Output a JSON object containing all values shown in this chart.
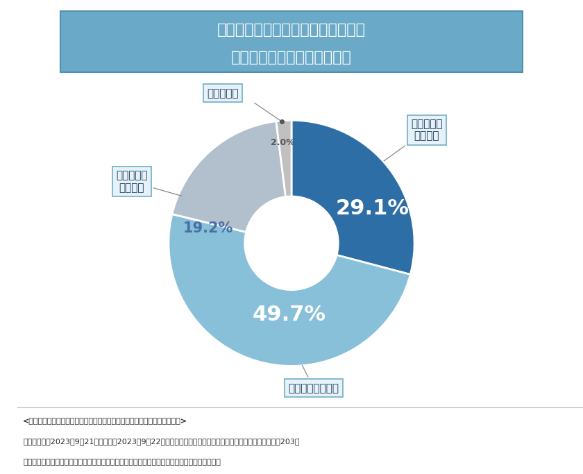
{
  "title_line1": "サスティナビリティ業務を行う上で",
  "title_line2": "人手不足を感じていますか？",
  "title_bg_color": "#6aaac8",
  "title_text_color": "#ffffff",
  "slices": [
    {
      "label": "とても不足\nしている",
      "value": 29.1,
      "color": "#2e6ea6",
      "pct_color": "#ffffff",
      "pct_size": 24
    },
    {
      "label": "やや不足している",
      "value": 49.7,
      "color": "#87c0d8",
      "pct_color": "#ffffff",
      "pct_size": 24
    },
    {
      "label": "どちらとも\n言えない",
      "value": 19.2,
      "color": "#b2bfcc",
      "pct_color": "#4a6fa5",
      "pct_size": 16
    },
    {
      "label": "余っている",
      "value": 2.0,
      "color": "#c0c0c0",
      "pct_color": "#555555",
      "pct_size": 9
    }
  ],
  "bg_color": "#ffffff",
  "footnote_line1": "<調査概要：「上場企業におけるサステナビリティ業務」に関する実態調査>",
  "footnote_line2": "・調査機関：2023年9月21日（木）～2023年9月22日（金）　・調査方法：インターネット調査　・調査数：203人",
  "footnote_line3": "・調査対象：上場企業のサステナビリティ業務に携わる方　・モニター提供：ゼネラルリサーチ",
  "footnote_color": "#222222",
  "callout_bg": "#e6f2f8",
  "callout_border": "#7ab3cc",
  "callout_text_color": "#1a3a5c"
}
